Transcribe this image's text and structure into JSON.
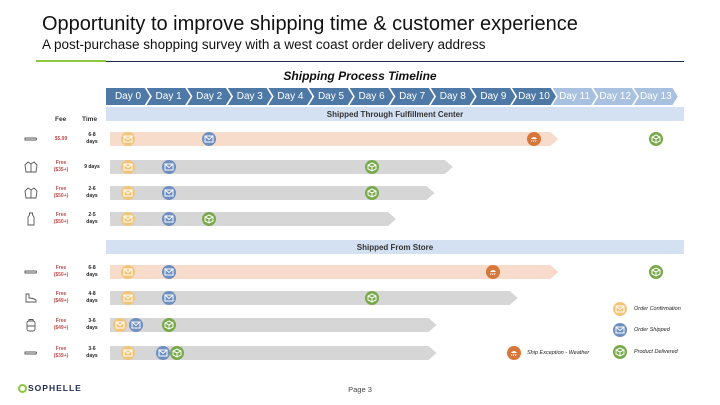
{
  "slide": {
    "title": "Opportunity to improve shipping time & customer experience",
    "subtitle": "A post-purchase shopping survey with a west coast order delivery address",
    "timeline_title": "Shipping Process Timeline",
    "page_label": "Page 3",
    "logo_text": "SOPHELLE",
    "colors": {
      "navy": "#1f2d4d",
      "green": "#8dc63f",
      "chevron": "#4e79a7"
    }
  },
  "timeline": {
    "days": [
      "Day 0",
      "Day 1",
      "Day 2",
      "Day 3",
      "Day 4",
      "Day 5",
      "Day 6",
      "Day 7",
      "Day 8",
      "Day 9",
      "Day 10",
      "Day 11",
      "Day 12",
      "Day 13"
    ]
  },
  "headers": {
    "fee": "Fee",
    "time": "Time"
  },
  "sections": [
    {
      "label": "Shipped Through Fulfillment Center"
    },
    {
      "label": "Shipped From Store"
    }
  ],
  "rows": [
    {
      "fee": [
        "$5.99"
      ],
      "time": [
        "6-8",
        "days"
      ],
      "product_icon": "boot-insole-icon",
      "bar": "peach",
      "bar_end_day": 10.6,
      "events": [
        {
          "type": "conf",
          "day": 0
        },
        {
          "type": "ship",
          "day": 2
        },
        {
          "type": "exc",
          "day": 10
        },
        {
          "type": "deliv",
          "day": 13
        }
      ]
    },
    {
      "fee": [
        "Free",
        "($35+)"
      ],
      "time": [
        "9 days"
      ],
      "product_icon": "jacket-icon",
      "bar": "gray",
      "bar_end_day": 8.0,
      "events": [
        {
          "type": "conf",
          "day": 0
        },
        {
          "type": "ship",
          "day": 1
        },
        {
          "type": "deliv",
          "day": 6
        }
      ]
    },
    {
      "fee": [
        "Free",
        "($50+)"
      ],
      "time": [
        "2-6",
        "days"
      ],
      "product_icon": "jacket-icon",
      "bar": "gray",
      "bar_end_day": 7.55,
      "events": [
        {
          "type": "conf",
          "day": 0
        },
        {
          "type": "ship",
          "day": 1
        },
        {
          "type": "deliv",
          "day": 6
        }
      ]
    },
    {
      "fee": [
        "Free",
        "($50+)"
      ],
      "time": [
        "2-5",
        "days"
      ],
      "product_icon": "bottle-icon",
      "bar": "gray",
      "bar_end_day": 6.6,
      "events": [
        {
          "type": "conf",
          "day": 0
        },
        {
          "type": "ship",
          "day": 1
        },
        {
          "type": "deliv",
          "day": 2
        }
      ]
    },
    {
      "fee": [
        "Free",
        "($50+)"
      ],
      "time": [
        "6-8",
        "days"
      ],
      "product_icon": "boot-insole-icon",
      "bar": "peach",
      "bar_end_day": 10.6,
      "events": [
        {
          "type": "conf",
          "day": 0
        },
        {
          "type": "ship",
          "day": 1
        },
        {
          "type": "exc",
          "day": 9
        },
        {
          "type": "deliv",
          "day": 13
        }
      ]
    },
    {
      "fee": [
        "Free",
        "($49+)"
      ],
      "time": [
        "4-8",
        "days"
      ],
      "product_icon": "shoe-icon",
      "bar": "gray",
      "bar_end_day": 9.6,
      "events": [
        {
          "type": "conf",
          "day": 0
        },
        {
          "type": "ship",
          "day": 1
        },
        {
          "type": "deliv",
          "day": 6
        }
      ]
    },
    {
      "fee": [
        "Free",
        "($49+)"
      ],
      "time": [
        "3-6",
        "days"
      ],
      "product_icon": "backpack-icon",
      "bar": "gray",
      "bar_end_day": 7.6,
      "events": [
        {
          "type": "conf",
          "day": -0.2
        },
        {
          "type": "ship",
          "day": 0.2
        },
        {
          "type": "deliv",
          "day": 1
        }
      ]
    },
    {
      "fee": [
        "Free",
        "($39+)"
      ],
      "time": [
        "3-6",
        "days"
      ],
      "product_icon": "boot-insole-icon",
      "bar": "gray",
      "bar_end_day": 7.6,
      "events": [
        {
          "type": "conf",
          "day": 0
        },
        {
          "type": "ship",
          "day": 0.85
        },
        {
          "type": "deliv",
          "day": 1.2
        }
      ]
    }
  ],
  "legend": {
    "order_confirmation": "Order Confirmation",
    "order_shipped": "Order Shipped",
    "product_delivered": "Product Delivered",
    "ship_exception": "Ship Exception - Weather"
  }
}
